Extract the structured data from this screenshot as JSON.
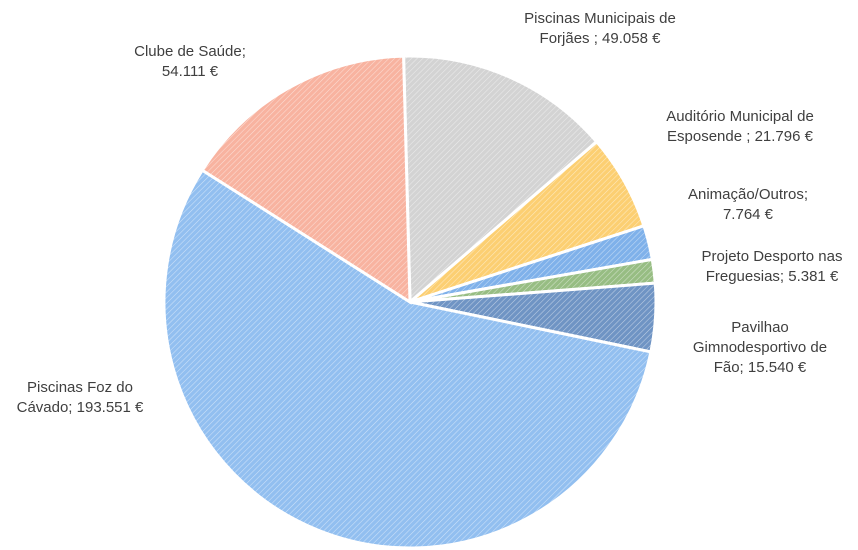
{
  "chart_data": {
    "type": "pie",
    "title": "",
    "start_angle_deg": -1.5,
    "slices": [
      {
        "name": "Piscinas Municipais de Forjães",
        "value": 49058,
        "color": "#d3d3d3",
        "label_lines": [
          "Piscinas Municipais de",
          "Forjães ; 49.058 €"
        ]
      },
      {
        "name": "Auditório Municipal de Esposende",
        "value": 21796,
        "color": "#fccf72",
        "label_lines": [
          "Auditório Municipal de",
          "Esposende ; 21.796 €"
        ]
      },
      {
        "name": "Animação/Outros",
        "value": 7764,
        "color": "#7fb1ea",
        "label_lines": [
          "Animação/Outros;",
          "7.764 €"
        ]
      },
      {
        "name": "Projeto Desporto nas Freguesias",
        "value": 5381,
        "color": "#97bd83",
        "label_lines": [
          "Projeto Desporto nas",
          "Freguesias; 5.381 €"
        ]
      },
      {
        "name": "Pavilhao Gimnodesportivo de Fão",
        "value": 15540,
        "color": "#6f94c4",
        "label_lines": [
          "Pavilhao",
          "Gimnodesportivo de",
          "Fão; 15.540 €"
        ]
      },
      {
        "name": "Piscinas Foz do Cávado",
        "value": 193551,
        "color": "#92bff0",
        "label_lines": [
          "Piscinas Foz do",
          "Cávado; 193.551 €"
        ]
      },
      {
        "name": "Clube de Saúde",
        "value": 54111,
        "color": "#f8b3a0",
        "label_lines": [
          "Clube de Saúde;",
          "54.111 €"
        ]
      }
    ]
  }
}
